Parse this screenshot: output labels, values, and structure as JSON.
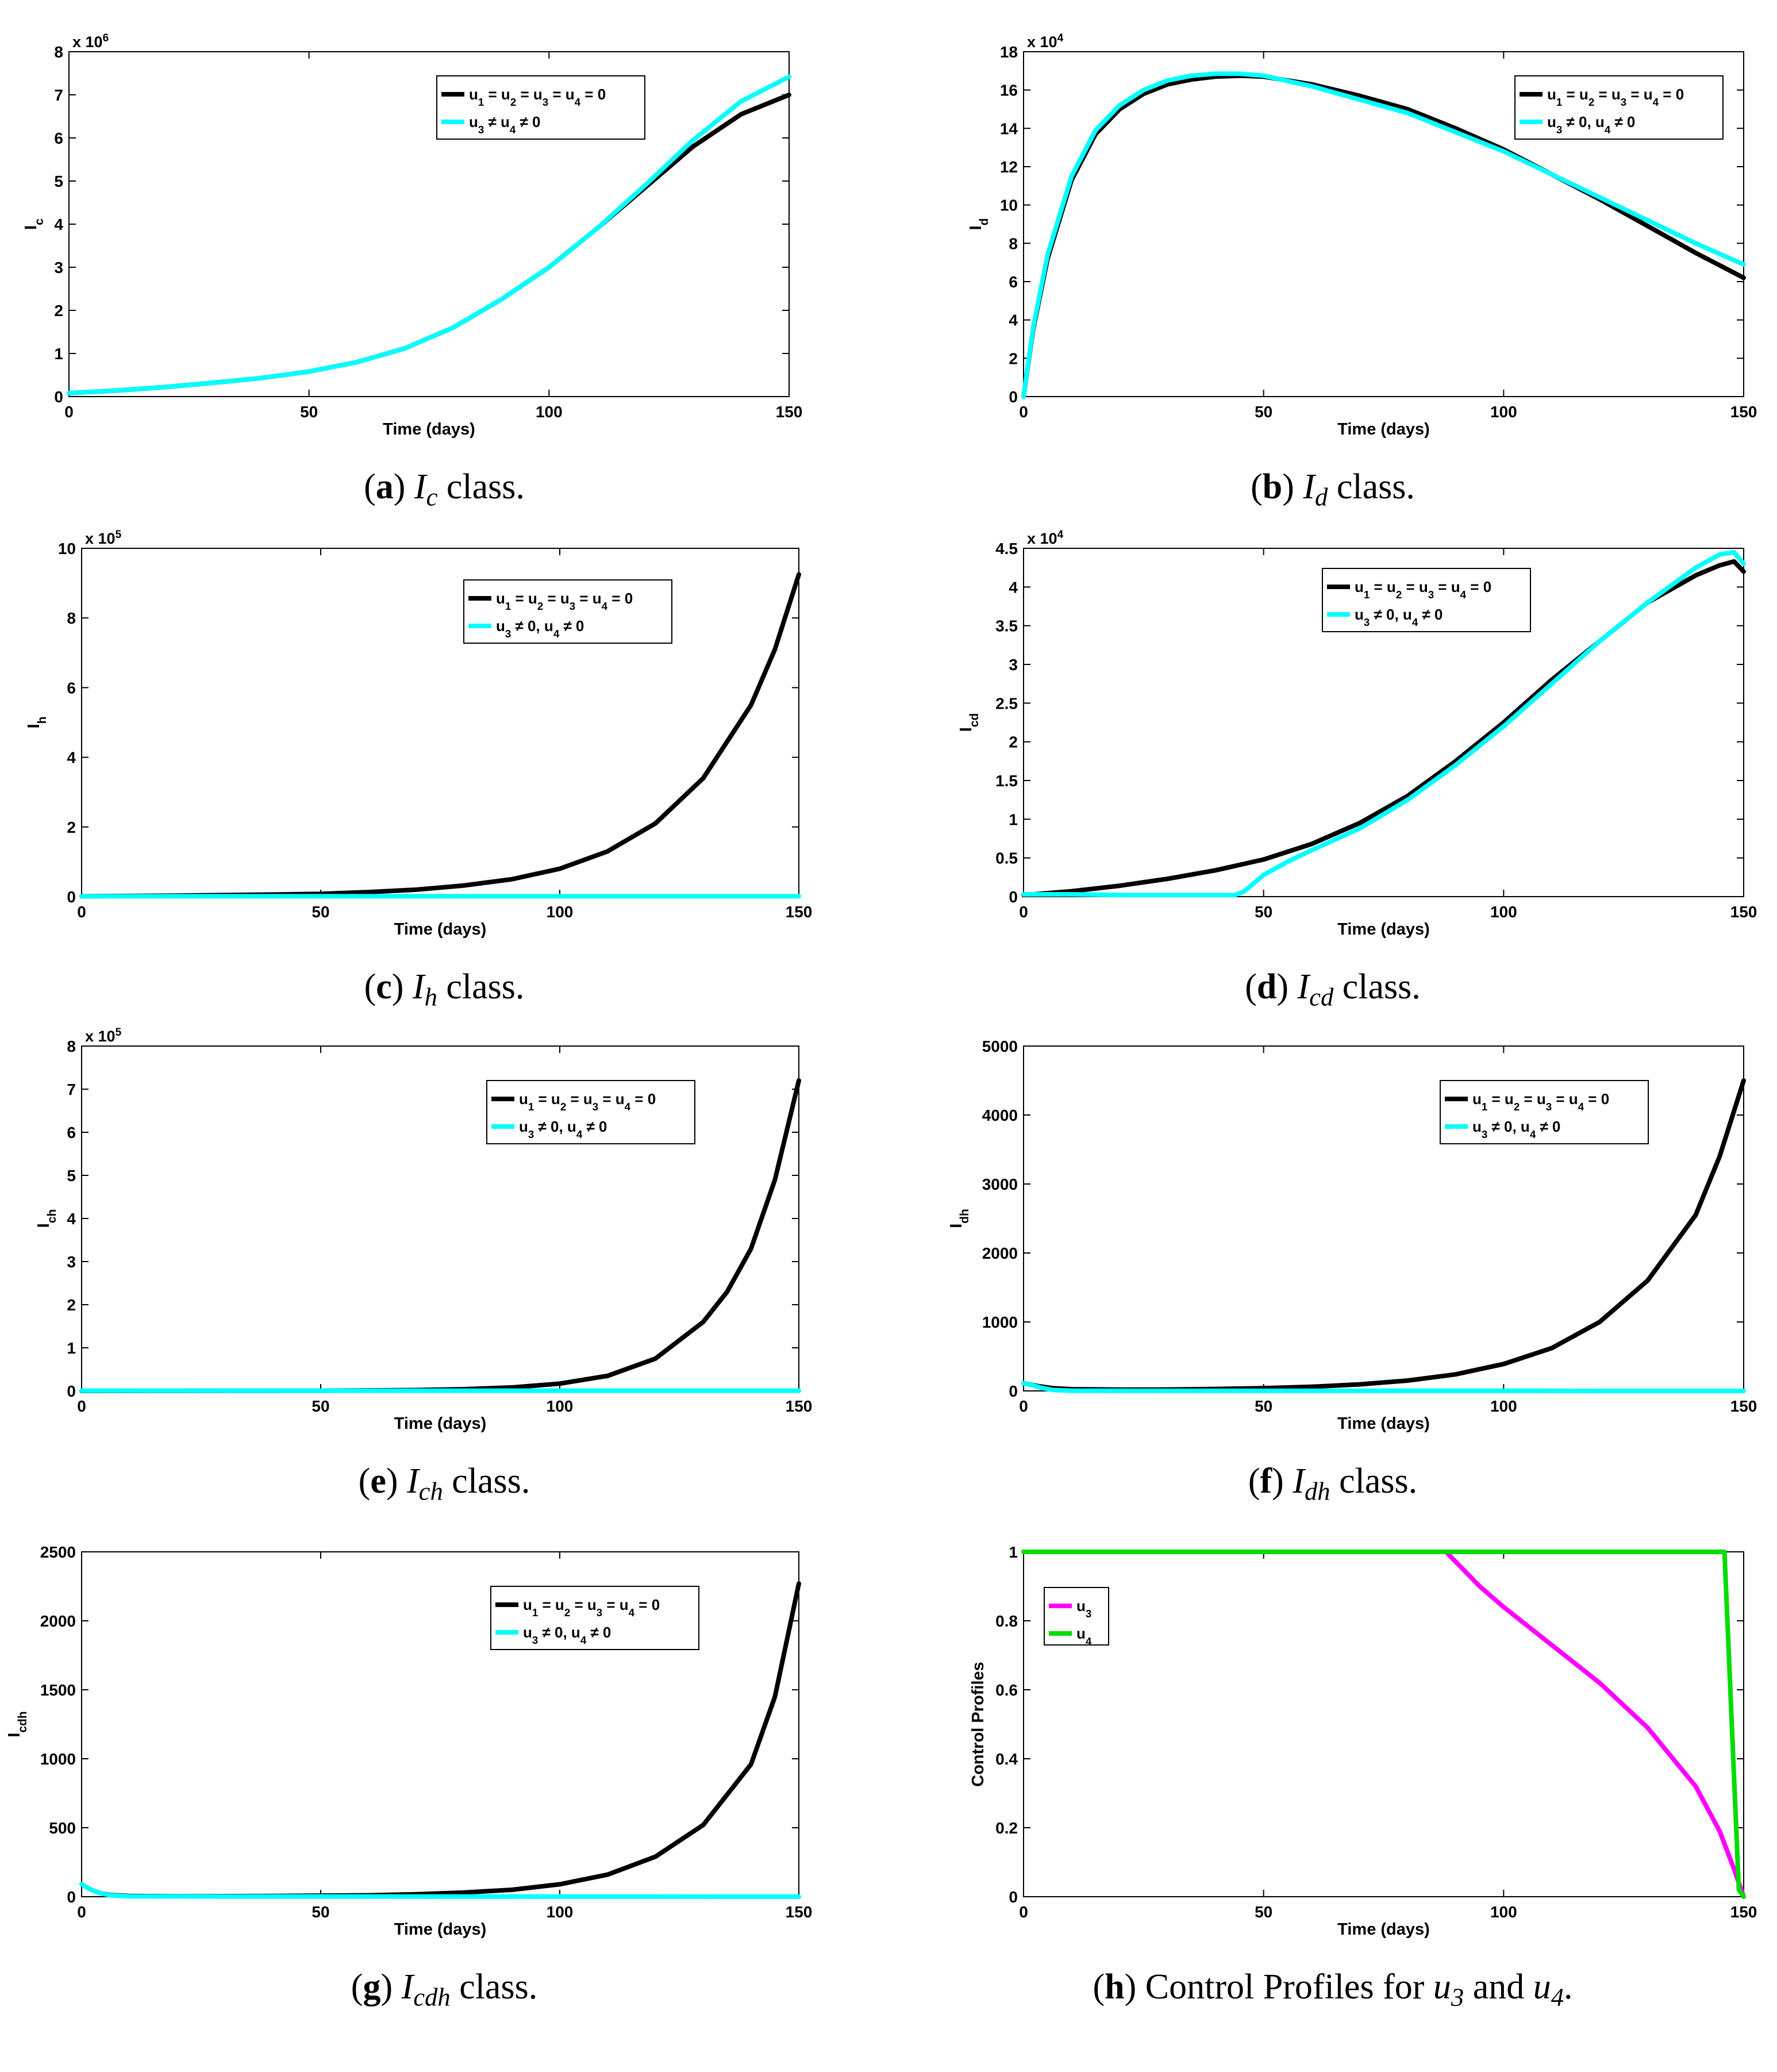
{
  "figure": {
    "legend_labels": {
      "no_control": [
        "u",
        "1",
        " = u",
        "2",
        " = u",
        "3",
        " = u",
        "4",
        " = 0"
      ],
      "control_a": [
        "u",
        "3",
        " ≠ u",
        "4",
        " ≠ 0"
      ],
      "control_b": [
        "u",
        "3",
        " ≠ 0, u",
        "4",
        " ≠ 0"
      ]
    },
    "colors": {
      "no_control": "#000000",
      "with_control": "#00ffff",
      "u3": "#ff00ff",
      "u4": "#00dd00"
    }
  },
  "chart_data": [
    {
      "id": "a",
      "type": "line",
      "caption": {
        "letter": "a",
        "var": "I",
        "sub": "c",
        "rest": "class."
      },
      "ylabel": {
        "base": "I",
        "sub": "c"
      },
      "xlabel": "Time (days)",
      "xlim": [
        0,
        150
      ],
      "ylim": [
        0,
        8
      ],
      "exponent": "x 10",
      "exponent_power": "6",
      "xticks": [
        "0",
        "50",
        "100",
        "150"
      ],
      "yticks": [
        "0",
        "1",
        "2",
        "3",
        "4",
        "5",
        "6",
        "7",
        "8"
      ],
      "legend_position": "top-right",
      "series": [
        {
          "name": "u1 = u2 = u3 = u4 = 0",
          "color": "#000000",
          "legend": "no_control",
          "x": [
            0,
            10,
            20,
            30,
            40,
            50,
            60,
            70,
            80,
            90,
            100,
            110,
            120,
            130,
            140,
            150
          ],
          "y": [
            0.08,
            0.14,
            0.22,
            0.32,
            0.43,
            0.58,
            0.8,
            1.12,
            1.6,
            2.25,
            3.0,
            3.9,
            4.85,
            5.8,
            6.55,
            7.0
          ]
        },
        {
          "name": "u3 ≠ u4 ≠ 0",
          "color": "#00ffff",
          "legend": "control_a",
          "x": [
            0,
            10,
            20,
            30,
            40,
            50,
            60,
            70,
            80,
            90,
            100,
            110,
            120,
            130,
            140,
            150
          ],
          "y": [
            0.08,
            0.14,
            0.22,
            0.32,
            0.43,
            0.58,
            0.8,
            1.12,
            1.6,
            2.25,
            3.0,
            3.9,
            4.9,
            5.95,
            6.85,
            7.42
          ]
        }
      ]
    },
    {
      "id": "b",
      "type": "line",
      "caption": {
        "letter": "b",
        "var": "I",
        "sub": "d",
        "rest": "class."
      },
      "ylabel": {
        "base": "I",
        "sub": "d"
      },
      "xlabel": "Time (days)",
      "xlim": [
        0,
        150
      ],
      "ylim": [
        0,
        18
      ],
      "exponent": "x 10",
      "exponent_power": "4",
      "xticks": [
        "0",
        "50",
        "100",
        "150"
      ],
      "yticks": [
        "0",
        "2",
        "4",
        "6",
        "8",
        "10",
        "12",
        "14",
        "16",
        "18"
      ],
      "legend_position": "top-right",
      "series": [
        {
          "name": "u1 = u2 = u3 = u4 = 0",
          "color": "#000000",
          "legend": "no_control",
          "x": [
            0,
            2,
            5,
            10,
            15,
            20,
            25,
            30,
            35,
            40,
            45,
            50,
            60,
            70,
            80,
            90,
            100,
            110,
            120,
            130,
            140,
            150
          ],
          "y": [
            0,
            3.5,
            7.2,
            11.3,
            13.7,
            15.0,
            15.8,
            16.3,
            16.55,
            16.7,
            16.75,
            16.7,
            16.3,
            15.7,
            15.0,
            14.0,
            12.9,
            11.6,
            10.3,
            8.9,
            7.5,
            6.2
          ]
        },
        {
          "name": "u3 ≠ 0, u4 ≠ 0",
          "color": "#00ffff",
          "legend": "control_b",
          "x": [
            0,
            2,
            5,
            10,
            15,
            20,
            25,
            30,
            35,
            40,
            45,
            50,
            60,
            70,
            80,
            90,
            100,
            110,
            120,
            130,
            140,
            150
          ],
          "y": [
            0,
            3.6,
            7.4,
            11.5,
            13.9,
            15.2,
            16.0,
            16.5,
            16.75,
            16.85,
            16.85,
            16.75,
            16.2,
            15.5,
            14.8,
            13.8,
            12.8,
            11.6,
            10.4,
            9.2,
            8.0,
            6.9
          ]
        }
      ]
    },
    {
      "id": "c",
      "type": "line",
      "caption": {
        "letter": "c",
        "var": "I",
        "sub": "h",
        "rest": "class."
      },
      "ylabel": {
        "base": "I",
        "sub": "h"
      },
      "xlabel": "Time (days)",
      "xlim": [
        0,
        150
      ],
      "ylim": [
        0,
        10
      ],
      "exponent": "x 10",
      "exponent_power": "5",
      "xticks": [
        "0",
        "50",
        "100",
        "150"
      ],
      "yticks": [
        "0",
        "2",
        "4",
        "6",
        "8",
        "10"
      ],
      "legend_position": "top-right",
      "series": [
        {
          "name": "u1 = u2 = u3 = u4 = 0",
          "color": "#000000",
          "legend": "no_control",
          "x": [
            0,
            20,
            40,
            50,
            60,
            70,
            80,
            90,
            100,
            110,
            120,
            130,
            140,
            145,
            150
          ],
          "y": [
            0.01,
            0.03,
            0.06,
            0.08,
            0.13,
            0.2,
            0.32,
            0.5,
            0.8,
            1.3,
            2.1,
            3.4,
            5.5,
            7.1,
            9.25
          ]
        },
        {
          "name": "u3 ≠ 0, u4 ≠ 0",
          "color": "#00ffff",
          "legend": "control_b",
          "x": [
            0,
            150
          ],
          "y": [
            0.01,
            0.01
          ]
        }
      ]
    },
    {
      "id": "d",
      "type": "line",
      "caption": {
        "letter": "d",
        "var": "I",
        "sub": "cd",
        "rest": "class."
      },
      "ylabel": {
        "base": "I",
        "sub": "cd"
      },
      "xlabel": "Time (days)",
      "xlim": [
        0,
        150
      ],
      "ylim": [
        0,
        4.5
      ],
      "exponent": "x 10",
      "exponent_power": "4",
      "xticks": [
        "0",
        "50",
        "100",
        "150"
      ],
      "yticks": [
        "0",
        "0.5",
        "1",
        "1.5",
        "2",
        "2.5",
        "3",
        "3.5",
        "4",
        "4.5"
      ],
      "legend_position": "top-right",
      "series": [
        {
          "name": "u1 = u2 = u3 = u4 = 0",
          "color": "#000000",
          "legend": "no_control",
          "x": [
            0,
            10,
            20,
            30,
            40,
            50,
            60,
            70,
            80,
            90,
            100,
            110,
            120,
            130,
            140,
            145,
            148,
            150
          ],
          "y": [
            0.02,
            0.07,
            0.14,
            0.23,
            0.34,
            0.48,
            0.68,
            0.95,
            1.3,
            1.75,
            2.25,
            2.8,
            3.3,
            3.8,
            4.15,
            4.28,
            4.33,
            4.2
          ]
        },
        {
          "name": "u3 ≠ 0, u4 ≠ 0",
          "color": "#00ffff",
          "legend": "control_b",
          "x": [
            0,
            10,
            20,
            30,
            40,
            44,
            46,
            50,
            55,
            60,
            70,
            80,
            90,
            100,
            110,
            120,
            130,
            140,
            145,
            148,
            150
          ],
          "y": [
            0.03,
            0.03,
            0.02,
            0.02,
            0.02,
            0.02,
            0.07,
            0.28,
            0.45,
            0.6,
            0.88,
            1.25,
            1.7,
            2.2,
            2.75,
            3.3,
            3.8,
            4.25,
            4.42,
            4.45,
            4.3
          ]
        }
      ]
    },
    {
      "id": "e",
      "type": "line",
      "caption": {
        "letter": "e",
        "var": "I",
        "sub": "ch",
        "rest": "class."
      },
      "ylabel": {
        "base": "I",
        "sub": "ch"
      },
      "xlabel": "Time (days)",
      "xlim": [
        0,
        150
      ],
      "ylim": [
        0,
        8
      ],
      "exponent": "x 10",
      "exponent_power": "5",
      "xticks": [
        "0",
        "50",
        "100",
        "150"
      ],
      "yticks": [
        "0",
        "1",
        "2",
        "3",
        "4",
        "5",
        "6",
        "7",
        "8"
      ],
      "legend_position": "top-right",
      "series": [
        {
          "name": "u1 = u2 = u3 = u4 = 0",
          "color": "#000000",
          "legend": "no_control",
          "x": [
            0,
            50,
            70,
            80,
            90,
            100,
            110,
            120,
            130,
            135,
            140,
            145,
            150
          ],
          "y": [
            0,
            0.005,
            0.02,
            0.04,
            0.08,
            0.17,
            0.35,
            0.75,
            1.6,
            2.3,
            3.3,
            4.9,
            7.2
          ]
        },
        {
          "name": "u3 ≠ 0, u4 ≠ 0",
          "color": "#00ffff",
          "legend": "control_b",
          "x": [
            0,
            150
          ],
          "y": [
            0.005,
            0.005
          ]
        }
      ]
    },
    {
      "id": "f",
      "type": "line",
      "caption": {
        "letter": "f",
        "var": "I",
        "sub": "dh",
        "rest": "class."
      },
      "ylabel": {
        "base": "I",
        "sub": "dh"
      },
      "xlabel": "Time (days)",
      "xlim": [
        0,
        150
      ],
      "ylim": [
        0,
        5000
      ],
      "exponent": "",
      "exponent_power": "",
      "xticks": [
        "0",
        "50",
        "100",
        "150"
      ],
      "yticks": [
        "0",
        "1000",
        "2000",
        "3000",
        "4000",
        "5000"
      ],
      "legend_position": "top-right",
      "series": [
        {
          "name": "u1 = u2 = u3 = u4 = 0",
          "color": "#000000",
          "legend": "no_control",
          "x": [
            0,
            3,
            6,
            10,
            20,
            30,
            40,
            50,
            60,
            70,
            80,
            90,
            100,
            110,
            120,
            130,
            140,
            145,
            150
          ],
          "y": [
            110,
            70,
            40,
            25,
            18,
            20,
            28,
            40,
            60,
            95,
            150,
            240,
            390,
            620,
            1000,
            1600,
            2550,
            3400,
            4500
          ]
        },
        {
          "name": "u3 ≠ 0, u4 ≠ 0",
          "color": "#00ffff",
          "legend": "control_b",
          "x": [
            0,
            2,
            4,
            6,
            10,
            150
          ],
          "y": [
            110,
            80,
            40,
            15,
            2,
            0
          ]
        }
      ]
    },
    {
      "id": "g",
      "type": "line",
      "caption": {
        "letter": "g",
        "var": "I",
        "sub": "cdh",
        "rest": "class."
      },
      "ylabel": {
        "base": "I",
        "sub": "cdh"
      },
      "xlabel": "Time (days)",
      "xlim": [
        0,
        150
      ],
      "ylim": [
        0,
        2500
      ],
      "exponent": "",
      "exponent_power": "",
      "xticks": [
        "0",
        "50",
        "100",
        "150"
      ],
      "yticks": [
        "0",
        "500",
        "1000",
        "1500",
        "2000",
        "2500"
      ],
      "legend_position": "top-right",
      "series": [
        {
          "name": "u1 = u2 = u3 = u4 = 0",
          "color": "#000000",
          "legend": "no_control",
          "x": [
            0,
            2,
            4,
            6,
            10,
            20,
            40,
            60,
            70,
            80,
            90,
            100,
            110,
            120,
            130,
            140,
            145,
            150
          ],
          "y": [
            90,
            50,
            25,
            12,
            5,
            3,
            5,
            10,
            18,
            30,
            50,
            90,
            160,
            290,
            520,
            960,
            1450,
            2270
          ]
        },
        {
          "name": "u3 ≠ 0, u4 ≠ 0",
          "color": "#00ffff",
          "legend": "control_b",
          "x": [
            0,
            2,
            4,
            6,
            10,
            150
          ],
          "y": [
            90,
            50,
            25,
            10,
            2,
            0
          ]
        }
      ]
    },
    {
      "id": "h",
      "type": "line",
      "caption": {
        "letter": "h",
        "text": "Control Profiles for",
        "var1": "u",
        "sub1": "3",
        "and": "and",
        "var2": "u",
        "sub2": "4",
        "end": "."
      },
      "ylabel": {
        "base": "Control Profiles",
        "sub": ""
      },
      "xlabel": "Time (days)",
      "xlim": [
        0,
        150
      ],
      "ylim": [
        0,
        1
      ],
      "exponent": "",
      "exponent_power": "",
      "xticks": [
        "0",
        "50",
        "100",
        "150"
      ],
      "yticks": [
        "0",
        "0.2",
        "0.4",
        "0.6",
        "0.8",
        "1"
      ],
      "legend_position": "top-left",
      "series": [
        {
          "name": "u3",
          "color": "#ff00ff",
          "legend_base": "u",
          "legend_sub": "3",
          "x": [
            0,
            88,
            95,
            100,
            110,
            120,
            130,
            140,
            145,
            148,
            150
          ],
          "y": [
            1,
            1,
            0.9,
            0.84,
            0.73,
            0.62,
            0.49,
            0.32,
            0.19,
            0.08,
            0
          ]
        },
        {
          "name": "u4",
          "color": "#00dd00",
          "legend_base": "u",
          "legend_sub": "4",
          "x": [
            0,
            146,
            149,
            150
          ],
          "y": [
            1,
            1,
            0.02,
            0
          ]
        }
      ]
    }
  ]
}
